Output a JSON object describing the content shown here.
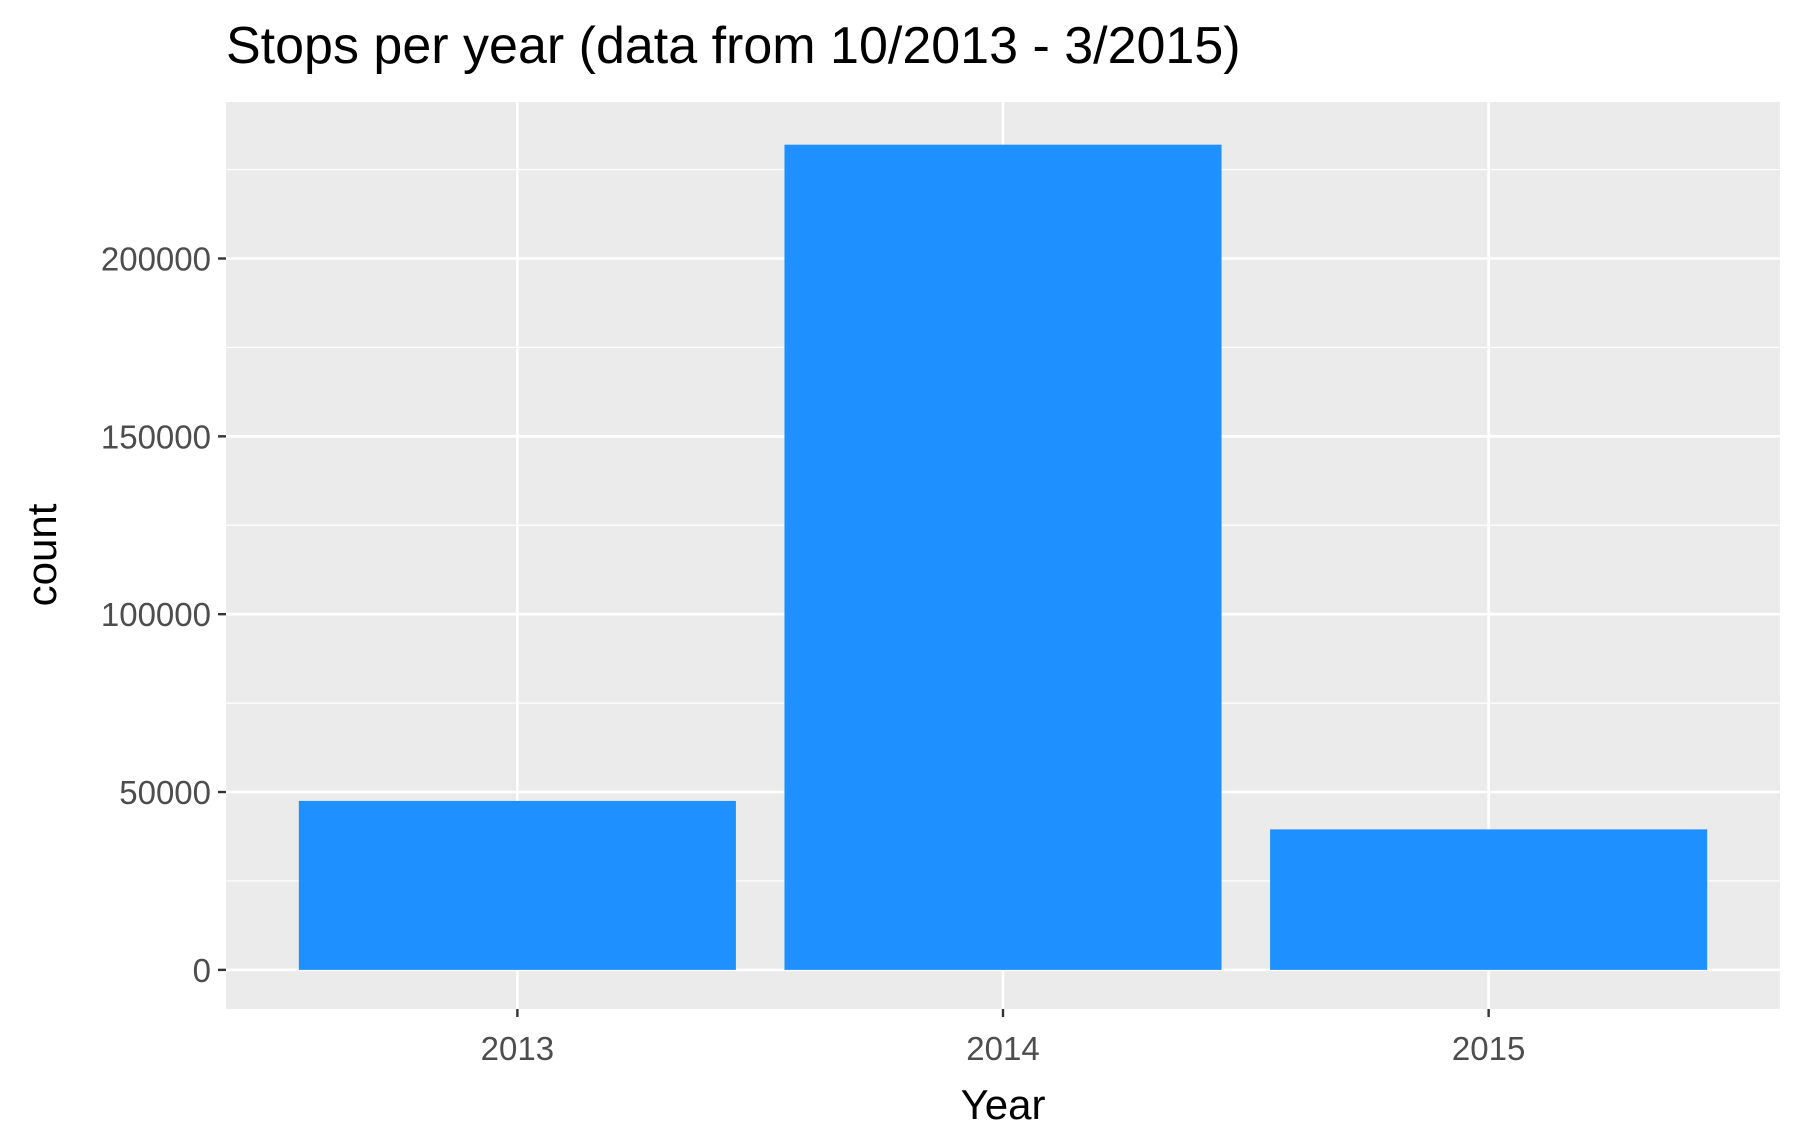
{
  "chart_data": {
    "type": "bar",
    "title": "Stops per year (data from 10/2013 - 3/2015)",
    "xlabel": "Year",
    "ylabel": "count",
    "categories": [
      "2013",
      "2014",
      "2015"
    ],
    "values": [
      47500,
      232000,
      39500
    ],
    "ylim": [
      -11000,
      244000
    ],
    "yticks": [
      0,
      50000,
      100000,
      150000,
      200000
    ],
    "ytick_labels": [
      "0",
      "50000",
      "100000",
      "150000",
      "200000"
    ],
    "grid": true,
    "legend": "none",
    "colors": {
      "bar": "#1E90FF",
      "panel_background": "#EBEBEB",
      "grid": "#FFFFFF",
      "tick_text": "#4D4D4D",
      "tick_mark": "#333333"
    }
  }
}
